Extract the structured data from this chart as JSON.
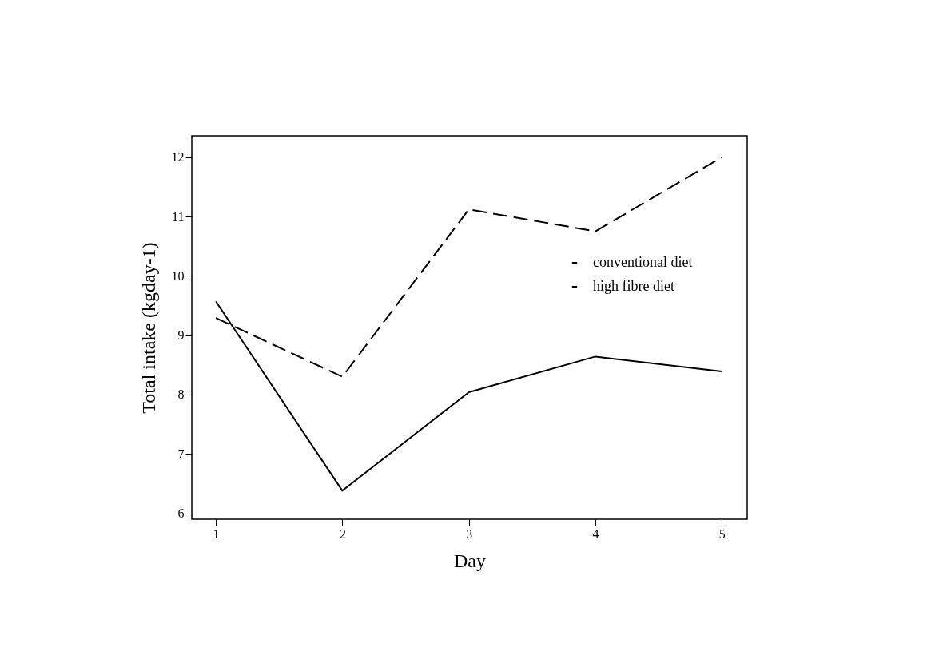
{
  "chart_data": {
    "type": "line",
    "xlabel": "Day",
    "ylabel": "Total intake (kgday-1)",
    "x": [
      1,
      2,
      3,
      4,
      5
    ],
    "series": [
      {
        "name": "conventional diet",
        "color": "#000000",
        "line_style": "solid",
        "values": [
          9.57,
          6.38,
          8.04,
          8.64,
          8.39
        ]
      },
      {
        "name": "high fibre diet",
        "color": "#000000",
        "line_style": "dashed",
        "values": [
          9.29,
          8.3,
          11.12,
          10.75,
          12.0
        ]
      }
    ],
    "xlim": [
      0.81,
      5.2
    ],
    "xticks": [
      1,
      2,
      3,
      4,
      5
    ],
    "ylim": [
      5.9,
      12.36
    ],
    "yticks": [
      6,
      7,
      8,
      9,
      10,
      11,
      12
    ],
    "grid": false,
    "legend": "top right",
    "marker": "none"
  }
}
